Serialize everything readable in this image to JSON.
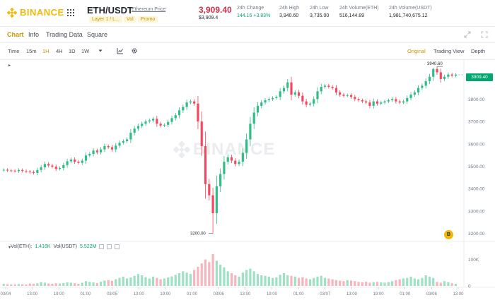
{
  "header": {
    "logo_text": "BINANCE",
    "pair": "ETH/USDT",
    "pair_sub": "Ethereum Price",
    "tags": [
      "Layer 1 / L...",
      "Vol",
      "Promo"
    ],
    "last_price": "3,909.40",
    "last_price_usd": "$3,909.4",
    "stats": [
      {
        "label": "24h Change",
        "value": "144.16 +3.83%",
        "up": true
      },
      {
        "label": "24h High",
        "value": "3,940.60",
        "up": false
      },
      {
        "label": "24h Low",
        "value": "3,735.00",
        "up": false
      },
      {
        "label": "24h Volume(ETH)",
        "value": "516,144.89",
        "up": false
      },
      {
        "label": "24h Volume(USDT)",
        "value": "1,981,740,675.12",
        "up": false
      }
    ]
  },
  "tabs": [
    "Chart",
    "Info",
    "Trading Data",
    "Square"
  ],
  "toolbar": {
    "intervals": [
      "Time",
      "15m",
      "1H",
      "4H",
      "1D",
      "1W"
    ],
    "active_interval": "1H",
    "views": [
      "Original",
      "Trading View",
      "Depth"
    ],
    "active_view": "Original"
  },
  "colors": {
    "up": "#2ebd85",
    "down": "#f6465d",
    "up_vol": "#9ee0c4",
    "down_vol": "#f7b4bd",
    "accent": "#f0b90b"
  },
  "chart": {
    "watermark": "BINANCE",
    "current_price_tag": "3909.40",
    "high_marker": "3940.60",
    "low_marker": "3200.00",
    "vol_legend": {
      "eth_label": "Vol(ETH):",
      "eth_value": "1.416K",
      "usdt_label": "Vol(USDT)",
      "usdt_value": "5.522M"
    },
    "fab_label": "B"
  },
  "chart_data": {
    "type": "candlestick",
    "y_axis_ticks": [
      "3800.00",
      "3700.00",
      "3600.00",
      "3500.00",
      "3400.00",
      "3300.00",
      "3200.00"
    ],
    "volume_axis_ticks": [
      "100K",
      "0"
    ],
    "x_axis_ticks": [
      "03/04",
      "13:00",
      "19:00",
      "01:00",
      "03/05",
      "13:00",
      "19:00",
      "01:00",
      "03/06",
      "13:00",
      "19:00",
      "01:00",
      "03/07",
      "13:00",
      "19:00",
      "01:00",
      "03/08",
      "13:00"
    ],
    "ylim": [
      3170,
      3975
    ],
    "closes": [
      3484,
      3481,
      3480,
      3478,
      3483,
      3479,
      3476,
      3474,
      3470,
      3483,
      3495,
      3510,
      3503,
      3498,
      3488,
      3492,
      3505,
      3522,
      3530,
      3520,
      3515,
      3525,
      3548,
      3555,
      3570,
      3562,
      3575,
      3590,
      3585,
      3575,
      3592,
      3605,
      3612,
      3620,
      3650,
      3668,
      3680,
      3690,
      3700,
      3705,
      3712,
      3690,
      3682,
      3685,
      3698,
      3715,
      3728,
      3750,
      3765,
      3785,
      3790,
      3780,
      3700,
      3590,
      3420,
      3370,
      3290,
      3410,
      3465,
      3520,
      3540,
      3525,
      3510,
      3520,
      3560,
      3620,
      3690,
      3740,
      3770,
      3785,
      3795,
      3800,
      3805,
      3810,
      3835,
      3850,
      3875,
      3820,
      3830,
      3815,
      3790,
      3775,
      3780,
      3800,
      3835,
      3855,
      3860,
      3855,
      3850,
      3830,
      3820,
      3815,
      3818,
      3810,
      3800,
      3795,
      3790,
      3785,
      3770,
      3790,
      3780,
      3785,
      3790,
      3795,
      3800,
      3790,
      3785,
      3790,
      3805,
      3820,
      3830,
      3850,
      3860,
      3880,
      3900,
      3935,
      3920,
      3890,
      3900,
      3910,
      3905,
      3909
    ],
    "volumes": [
      8,
      6,
      5,
      5,
      7,
      6,
      5,
      9,
      8,
      10,
      14,
      12,
      9,
      8,
      10,
      9,
      11,
      13,
      12,
      10,
      8,
      12,
      18,
      15,
      13,
      11,
      16,
      20,
      22,
      19,
      25,
      30,
      35,
      28,
      32,
      38,
      45,
      40,
      33,
      28,
      35,
      30,
      25,
      28,
      32,
      36,
      42,
      48,
      55,
      50,
      45,
      60,
      72,
      85,
      100,
      90,
      120,
      95,
      80,
      70,
      55,
      48,
      40,
      35,
      50,
      60,
      65,
      55,
      45,
      40,
      38,
      35,
      30,
      32,
      42,
      48,
      40,
      38,
      35,
      30,
      32,
      28,
      25,
      30,
      35,
      38,
      30,
      28,
      25,
      22,
      20,
      18,
      22,
      20,
      18,
      15,
      14,
      16,
      12,
      14,
      15,
      13,
      12,
      14,
      18,
      22,
      25,
      28,
      30,
      35,
      28,
      25,
      30,
      40,
      35,
      30,
      15,
      12,
      18,
      14,
      10,
      8
    ]
  }
}
